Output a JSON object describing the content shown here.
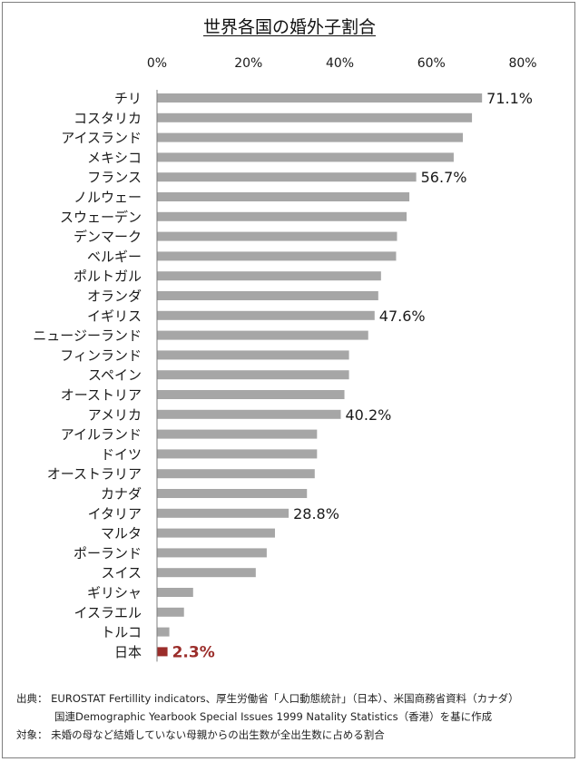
{
  "colors": {
    "bar": "#a6a6a6",
    "highlight": "#9b2d2a",
    "axis": "#7f7f7f",
    "text": "#1a1a1a"
  },
  "chart_data": {
    "type": "bar",
    "orientation": "horizontal",
    "title": "世界各国の婚外子割合",
    "xlim": [
      0,
      80
    ],
    "ticks": [
      "0%",
      "20%",
      "40%",
      "60%",
      "80%"
    ],
    "tick_values": [
      0,
      20,
      40,
      60,
      80
    ],
    "categories": [
      "チリ",
      "コスタリカ",
      "アイスランド",
      "メキシコ",
      "フランス",
      "ノルウェー",
      "スウェーデン",
      "デンマーク",
      "ベルギー",
      "ポルトガル",
      "オランダ",
      "イギリス",
      "ニュージーランド",
      "フィンランド",
      "スペイン",
      "オーストリア",
      "アメリカ",
      "アイルランド",
      "ドイツ",
      "オーストラリア",
      "カナダ",
      "イタリア",
      "マルタ",
      "ポーランド",
      "スイス",
      "ギリシャ",
      "イスラエル",
      "トルコ",
      "日本"
    ],
    "values": [
      71.1,
      68.9,
      66.9,
      64.9,
      56.7,
      55.2,
      54.6,
      52.5,
      52.3,
      49.0,
      48.4,
      47.6,
      46.2,
      42.0,
      42.0,
      41.0,
      40.2,
      35.0,
      35.0,
      34.5,
      32.8,
      28.8,
      25.8,
      24.0,
      21.6,
      7.9,
      5.9,
      2.7,
      2.3
    ],
    "data_labels": [
      {
        "index": 0,
        "text": "71.1%"
      },
      {
        "index": 4,
        "text": "56.7%"
      },
      {
        "index": 11,
        "text": "47.6%"
      },
      {
        "index": 16,
        "text": "40.2%"
      },
      {
        "index": 21,
        "text": "28.8%"
      },
      {
        "index": 28,
        "text": "2.3%"
      }
    ],
    "highlight_index": 28,
    "grid": false,
    "legend": "none"
  },
  "footer": {
    "source_label": "出典：",
    "source_line1": "EUROSTAT Fertillity indicators、厚生労働省「人口動態統計」（日本）、米国商務省資料（カナダ）",
    "source_line2": "国連Demographic Yearbook Special Issues 1999 Natality Statistics（香港）を基に作成",
    "target_label": "対象：",
    "target_text": "未婚の母など結婚していない母親からの出生数が全出生数に占める割合"
  }
}
